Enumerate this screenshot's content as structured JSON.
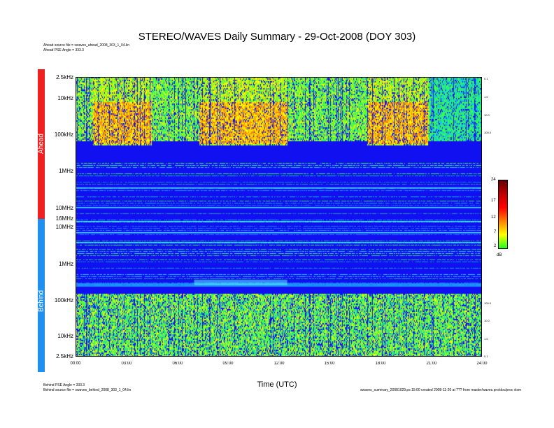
{
  "chart_data": {
    "type": "heatmap",
    "title": "STEREO/WAVES Daily Summary - 29-Oct-2008 (DOY 303)",
    "xlabel": "Time (UTC)",
    "x_ticks": [
      "00:00",
      "03:00",
      "06:00",
      "09:00",
      "12:00",
      "15:00",
      "18:00",
      "21:00",
      "24:00"
    ],
    "xlim_hours": [
      0,
      24
    ],
    "panels": [
      {
        "name": "Ahead",
        "color": "#f02020",
        "y_ticks": [
          "2.5kHz",
          "10kHz",
          "100kHz",
          "1MHz",
          "10MHz",
          "16MHz"
        ],
        "source_line": "Ahead source file = swaves_ahead_2008_303_1_04.lin",
        "angle_line": "Ahead PSE Angle = 333.3",
        "right_ticks": [
          "0.1",
          "1.0",
          "10.0",
          "100.0"
        ]
      },
      {
        "name": "Behind",
        "color": "#2090f0",
        "y_ticks": [
          "10MHz",
          "1MHz",
          "100kHz",
          "10kHz",
          "2.5kHz"
        ],
        "source_line": "Behind source file = swaves_behind_2008_303_1_04.lin",
        "angle_line": "Behind PSE Angle = 333.3",
        "right_ticks": [
          "100.0",
          "10.0",
          "1.0",
          "0.1"
        ]
      }
    ],
    "colorbar": {
      "ticks": [
        "24",
        "17",
        "12",
        "7",
        "2"
      ],
      "unit": "dB",
      "range": [
        2,
        24
      ],
      "colors": [
        "#20ff20",
        "#ffff00",
        "#ff8000",
        "#ff0000",
        "#c00000",
        "#600000"
      ]
    },
    "background_color": "#1010f0"
  },
  "footer_right": "swaves_summary_20081029.ps 15:00 created 2008-11-20 at ??? from master/waves.pro/doc/proc vlsm"
}
